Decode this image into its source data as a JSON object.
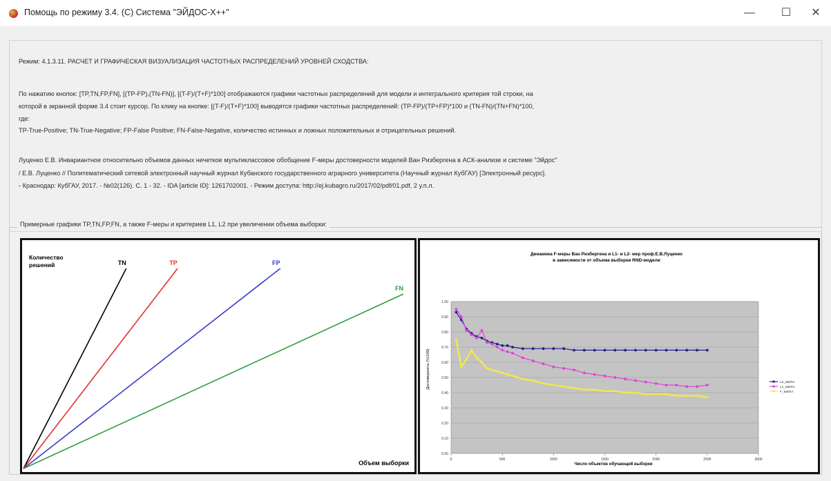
{
  "window": {
    "title": "Помощь по режиму 3.4. (С) Система \"ЭЙДОС-Х++\"",
    "minimize_glyph": "—",
    "maximize_glyph": "☐",
    "close_glyph": "✕"
  },
  "info": {
    "lines": [
      "Режим: 4.1.3.11. РАСЧЕТ И ГРАФИЧЕСКАЯ ВИЗУАЛИЗАЦИЯ ЧАСТОТНЫХ РАСПРЕДЕЛЕНИЙ УРОВНЕЙ СХОДСТВА:",
      "По нажатию кнопок: [TP,TN,FP,FN], [(TP-FP),(TN-FN)], [(T-F)/(T+F)*100] отображаются графики частотных распределений для модели и интегрального критерия той строки, на",
      "которой в экранной форме 3.4 стоит курсор. По клику на кнопке: [(T-F)/(T+F)*100] выводятся графики частотных распределений: (TP-FP)/(TP+FP)*100 и (TN-FN)/(TN+FN)*100,",
      "где:",
      "TP-True-Positive; TN-True-Negative; FP-False Positive; FN-False-Negative, количество истинных и ложных положительных и отрицательных решений.",
      "Луценко Е.В. Инвариантное относительно объемов данных нечеткое мультиклассовое обобщение F-меры достоверности моделей Ван Ризбергена в АСК-анализе и системе \"Эйдос\"",
      "/ Е.В. Луценко // Политематический сетевой электронный научный журнал Кубанского государственного аграрного университета (Научный журнал КубГАУ) [Электронный ресурс].",
      "- Краснодар: КубГАУ, 2017. - №02(126). С. 1 - 32. - IDA [article ID]: 1261702001. - Режим доступа: http://ej.kubagro.ru/2017/02/pdf/01.pdf, 2 у.п.л."
    ]
  },
  "group": {
    "caption": "Примерные графики TP,TN,FP,FN, а также F-меры и критериев L1, L2 при увеличении объема выборки:"
  },
  "left_chart": {
    "ylabel_line1": "Количество",
    "ylabel_line2": "решений",
    "xlabel": "Объем выборки",
    "lines": [
      {
        "name": "TN",
        "color": "#000000",
        "slope": 1.95
      },
      {
        "name": "TP",
        "color": "#e03030",
        "slope": 1.3
      },
      {
        "name": "FP",
        "color": "#3a3ac8",
        "slope": 0.78
      },
      {
        "name": "FN",
        "color": "#2e9e3e",
        "slope": 0.46
      }
    ]
  },
  "chart_data": {
    "type": "line",
    "title_line1": "Динамика F-меры Ван Ризбергена и L1- и L2- мер проф.Е.В.Луценко",
    "title_line2": "в зависимости от объема выборки RND-модели",
    "xlabel": "Число объектов обучающей выборки",
    "ylabel": "Достоверность (%/100)",
    "xlim": [
      0,
      3000
    ],
    "ylim": [
      0,
      1
    ],
    "x_ticks": [
      "0",
      "500",
      "1000",
      "1500",
      "2000",
      "2500",
      "3000"
    ],
    "y_ticks": [
      "0.00",
      "0.10",
      "0.20",
      "0.30",
      "0.40",
      "0.50",
      "0.60",
      "0.70",
      "0.80",
      "0.90",
      "1.00"
    ],
    "grid": true,
    "legend_position": "right",
    "series": [
      {
        "name": "L2_MERA",
        "color": "#1f1f8f",
        "x": [
          50,
          100,
          150,
          200,
          250,
          300,
          350,
          400,
          450,
          500,
          550,
          600,
          700,
          800,
          900,
          1000,
          1100,
          1200,
          1300,
          1400,
          1500,
          1600,
          1700,
          1800,
          1900,
          2000,
          2100,
          2200,
          2300,
          2400,
          2500
        ],
        "y": [
          0.93,
          0.88,
          0.82,
          0.79,
          0.77,
          0.76,
          0.74,
          0.73,
          0.72,
          0.71,
          0.71,
          0.7,
          0.69,
          0.69,
          0.69,
          0.69,
          0.69,
          0.68,
          0.68,
          0.68,
          0.68,
          0.68,
          0.68,
          0.68,
          0.68,
          0.68,
          0.68,
          0.68,
          0.68,
          0.68,
          0.68
        ]
      },
      {
        "name": "L1_MERA",
        "color": "#e040e0",
        "x": [
          50,
          100,
          150,
          200,
          250,
          300,
          350,
          400,
          450,
          500,
          550,
          600,
          700,
          800,
          900,
          1000,
          1100,
          1200,
          1300,
          1400,
          1500,
          1600,
          1700,
          1800,
          1900,
          2000,
          2100,
          2200,
          2300,
          2400,
          2500
        ],
        "y": [
          0.95,
          0.9,
          0.81,
          0.78,
          0.76,
          0.81,
          0.73,
          0.72,
          0.7,
          0.68,
          0.67,
          0.66,
          0.63,
          0.61,
          0.59,
          0.57,
          0.56,
          0.55,
          0.53,
          0.52,
          0.51,
          0.5,
          0.49,
          0.48,
          0.47,
          0.46,
          0.45,
          0.45,
          0.44,
          0.44,
          0.45
        ]
      },
      {
        "name": "F_MERA",
        "color": "#f2e84a",
        "x": [
          50,
          100,
          150,
          200,
          250,
          300,
          350,
          400,
          450,
          500,
          550,
          600,
          700,
          800,
          900,
          1000,
          1100,
          1200,
          1300,
          1400,
          1500,
          1600,
          1700,
          1800,
          1900,
          2000,
          2100,
          2200,
          2300,
          2400,
          2500
        ],
        "y": [
          0.75,
          0.57,
          0.62,
          0.68,
          0.63,
          0.6,
          0.56,
          0.55,
          0.54,
          0.53,
          0.52,
          0.51,
          0.49,
          0.48,
          0.46,
          0.45,
          0.44,
          0.43,
          0.42,
          0.42,
          0.41,
          0.41,
          0.4,
          0.4,
          0.39,
          0.39,
          0.39,
          0.38,
          0.38,
          0.38,
          0.37
        ]
      }
    ]
  }
}
